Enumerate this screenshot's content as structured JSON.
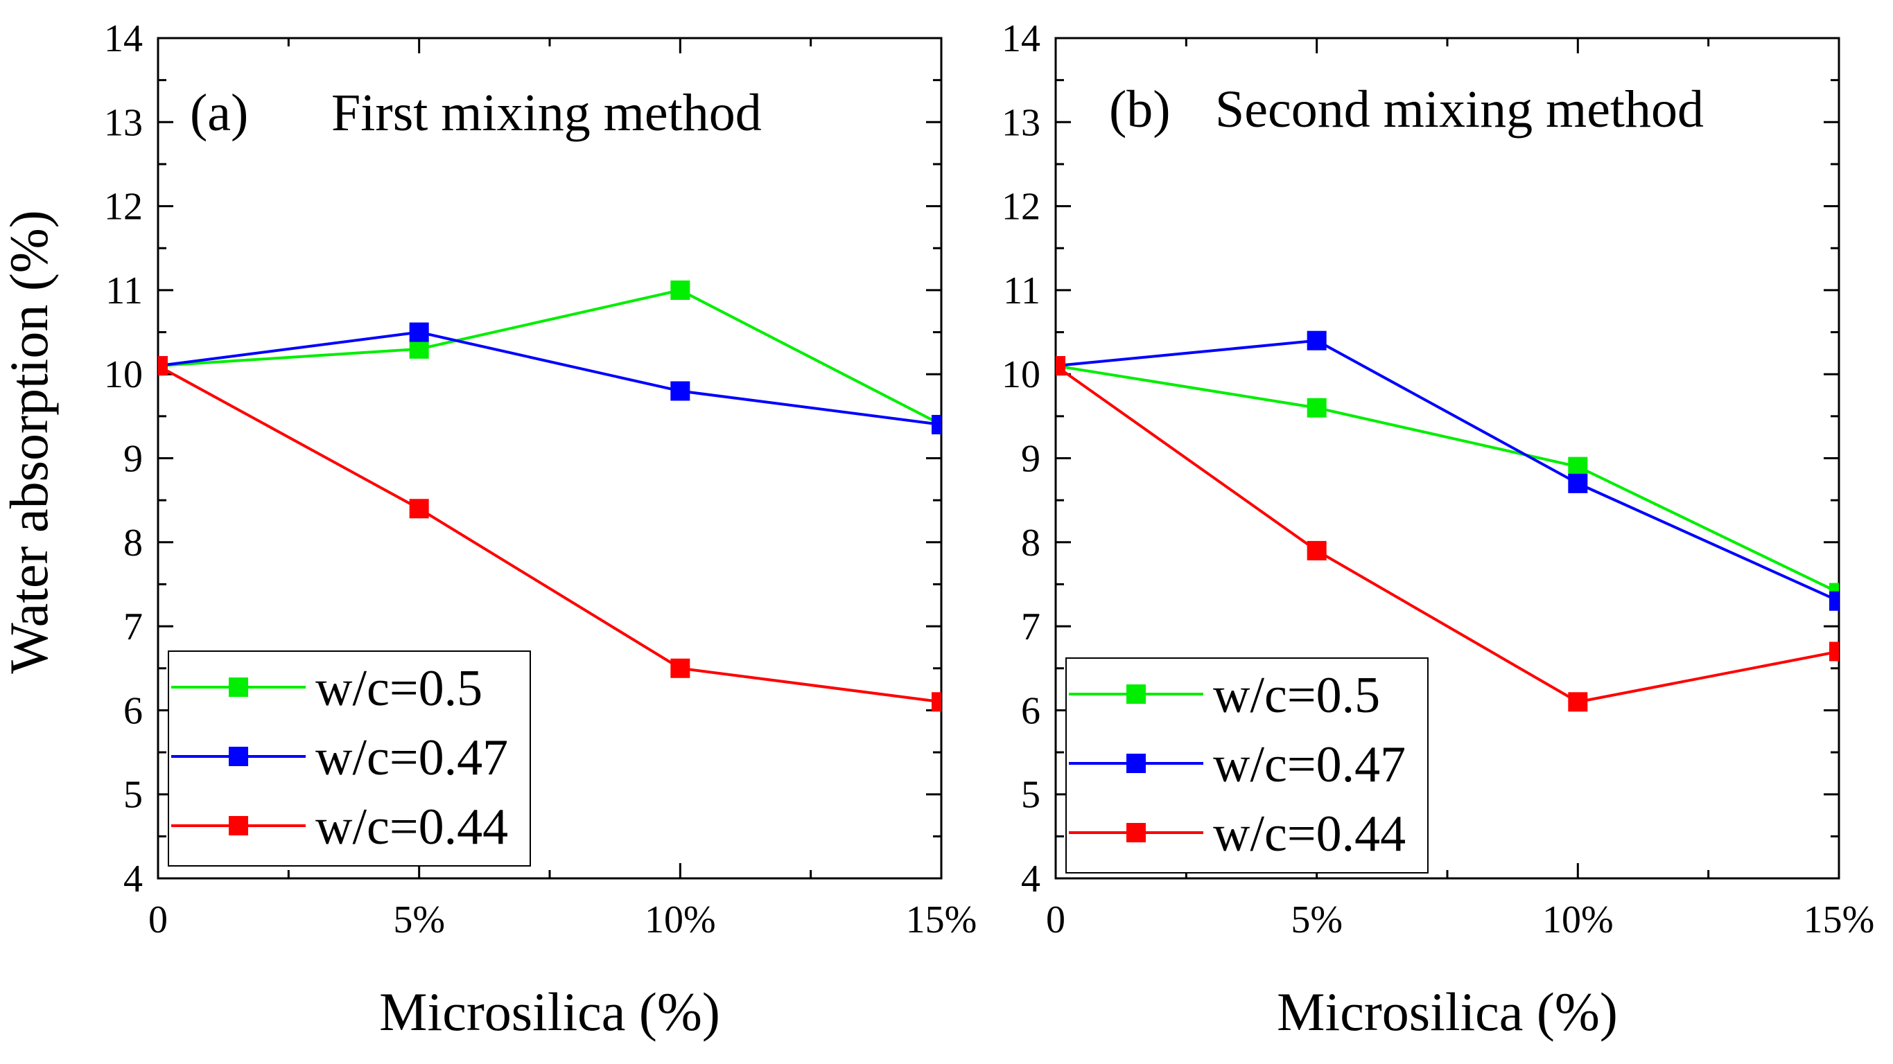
{
  "figure": {
    "ylabel": "Water absorption (%)"
  },
  "chart_data": [
    {
      "type": "line",
      "panel_label": "(a)",
      "title": "First mixing method",
      "xlabel": "Microsilica (%)",
      "ylabel": "Water absorption (%)",
      "x": [
        0,
        5,
        10,
        15
      ],
      "x_tick_labels": [
        "0",
        "5%",
        "10%",
        "15%"
      ],
      "xlim": [
        0,
        15
      ],
      "ylim": [
        4,
        14
      ],
      "y_ticks": [
        4,
        5,
        6,
        7,
        8,
        9,
        10,
        11,
        12,
        13,
        14
      ],
      "legend_position": "bottom-left",
      "series": [
        {
          "name": "w/c=0.5",
          "color": "#00ee00",
          "values": [
            10.1,
            10.3,
            11.0,
            9.4
          ]
        },
        {
          "name": "w/c=0.47",
          "color": "#0000ff",
          "values": [
            10.1,
            10.5,
            9.8,
            9.4
          ]
        },
        {
          "name": "w/c=0.44",
          "color": "#ff0000",
          "values": [
            10.1,
            8.4,
            6.5,
            6.1
          ]
        }
      ]
    },
    {
      "type": "line",
      "panel_label": "(b)",
      "title": "Second mixing method",
      "xlabel": "Microsilica (%)",
      "ylabel": "Water absorption (%)",
      "x": [
        0,
        5,
        10,
        15
      ],
      "x_tick_labels": [
        "0",
        "5%",
        "10%",
        "15%"
      ],
      "xlim": [
        0,
        15
      ],
      "ylim": [
        4,
        14
      ],
      "y_ticks": [
        4,
        5,
        6,
        7,
        8,
        9,
        10,
        11,
        12,
        13,
        14
      ],
      "legend_position": "bottom-left",
      "series": [
        {
          "name": "w/c=0.5",
          "color": "#00ee00",
          "values": [
            10.1,
            9.6,
            8.9,
            7.4
          ]
        },
        {
          "name": "w/c=0.47",
          "color": "#0000ff",
          "values": [
            10.1,
            10.4,
            8.7,
            7.3
          ]
        },
        {
          "name": "w/c=0.44",
          "color": "#ff0000",
          "values": [
            10.1,
            7.9,
            6.1,
            6.7
          ]
        }
      ]
    }
  ]
}
